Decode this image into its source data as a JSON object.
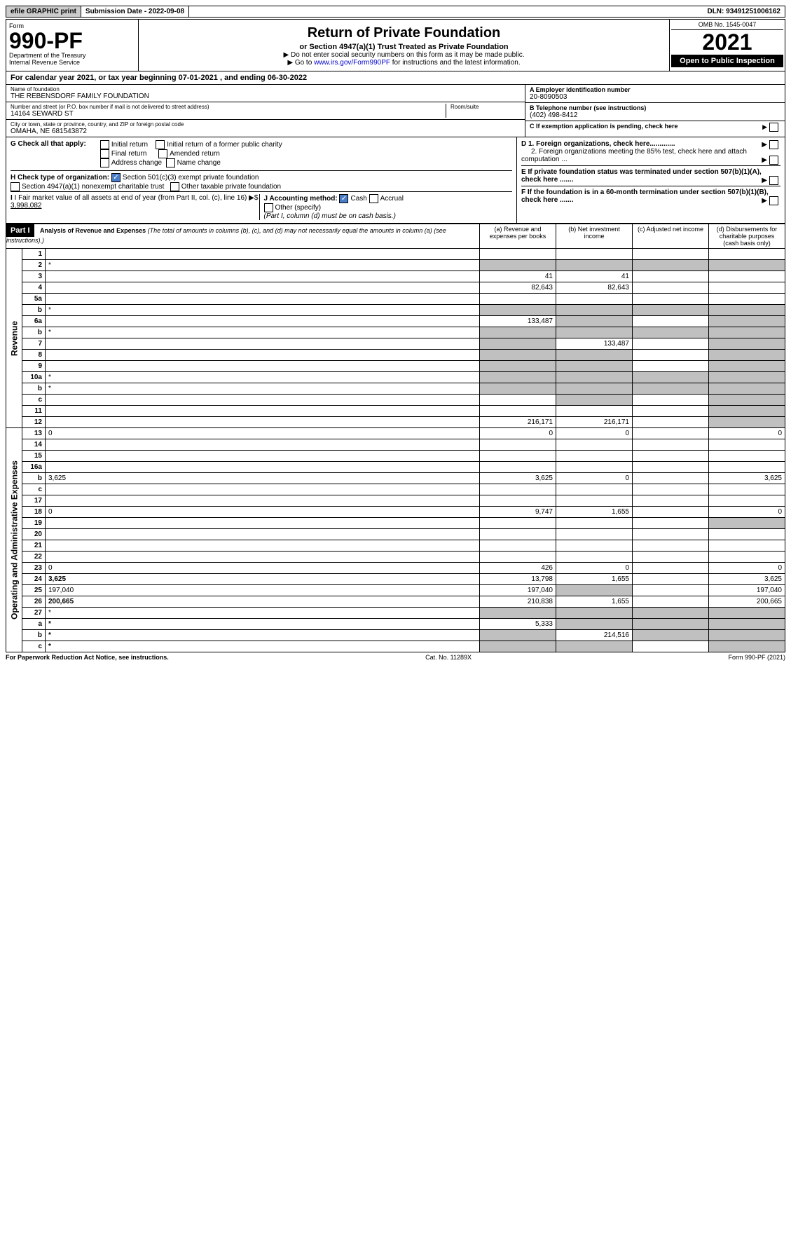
{
  "topbar": {
    "efile": "efile GRAPHIC print",
    "submission_label": "Submission Date - 2022-09-08",
    "dln": "DLN: 93491251006162"
  },
  "header": {
    "form_label": "Form",
    "form_number": "990-PF",
    "dept": "Department of the Treasury",
    "irs": "Internal Revenue Service",
    "title": "Return of Private Foundation",
    "subtitle": "or Section 4947(a)(1) Trust Treated as Private Foundation",
    "note1": "▶ Do not enter social security numbers on this form as it may be made public.",
    "note2_pre": "▶ Go to ",
    "note2_link": "www.irs.gov/Form990PF",
    "note2_post": " for instructions and the latest information.",
    "omb": "OMB No. 1545-0047",
    "year": "2021",
    "open": "Open to Public Inspection"
  },
  "calyear": "For calendar year 2021, or tax year beginning 07-01-2021                      , and ending 06-30-2022",
  "entity": {
    "name_label": "Name of foundation",
    "name": "THE REBENSDORF FAMILY FOUNDATION",
    "addr_label": "Number and street (or P.O. box number if mail is not delivered to street address)",
    "addr": "14164 SEWARD ST",
    "room_label": "Room/suite",
    "room": "",
    "city_label": "City or town, state or province, country, and ZIP or foreign postal code",
    "city": "OMAHA, NE  681543872",
    "ein_label": "A Employer identification number",
    "ein": "20-8090503",
    "tel_label": "B Telephone number (see instructions)",
    "tel": "(402) 498-8412",
    "c_label": "C If exemption application is pending, check here"
  },
  "checks": {
    "g_label": "G Check all that apply:",
    "g_opts": [
      "Initial return",
      "Initial return of a former public charity",
      "Final return",
      "Amended return",
      "Address change",
      "Name change"
    ],
    "h_label": "H Check type of organization:",
    "h_501c3": "Section 501(c)(3) exempt private foundation",
    "h_4947": "Section 4947(a)(1) nonexempt charitable trust",
    "h_other": "Other taxable private foundation",
    "i_label": "I Fair market value of all assets at end of year (from Part II, col. (c), line 16)",
    "i_value": "3,998,082",
    "j_label": "J Accounting method:",
    "j_cash": "Cash",
    "j_accrual": "Accrual",
    "j_other": "Other (specify)",
    "j_note": "(Part I, column (d) must be on cash basis.)",
    "d1": "D 1. Foreign organizations, check here.............",
    "d2": "2. Foreign organizations meeting the 85% test, check here and attach computation ...",
    "e": "E  If private foundation status was terminated under section 507(b)(1)(A), check here .......",
    "f": "F  If the foundation is in a 60-month termination under section 507(b)(1)(B), check here ......."
  },
  "part1": {
    "label": "Part I",
    "title": "Analysis of Revenue and Expenses",
    "title_note": "(The total of amounts in columns (b), (c), and (d) may not necessarily equal the amounts in column (a) (see instructions).)",
    "col_a": "(a) Revenue and expenses per books",
    "col_b": "(b) Net investment income",
    "col_c": "(c) Adjusted net income",
    "col_d": "(d) Disbursements for charitable purposes (cash basis only)"
  },
  "sidelabels": {
    "revenue": "Revenue",
    "expenses": "Operating and Administrative Expenses"
  },
  "rows": [
    {
      "n": "1",
      "d": "",
      "a": "",
      "b": "",
      "c": ""
    },
    {
      "n": "2",
      "d": "*",
      "a": "*",
      "b": "*",
      "c": "*",
      "shadeA": true,
      "shadeB": true,
      "shadeC": true,
      "shadeD": true
    },
    {
      "n": "3",
      "d": "",
      "a": "41",
      "b": "41",
      "c": ""
    },
    {
      "n": "4",
      "d": "",
      "a": "82,643",
      "b": "82,643",
      "c": ""
    },
    {
      "n": "5a",
      "d": "",
      "a": "",
      "b": "",
      "c": ""
    },
    {
      "n": "b",
      "d": "*",
      "a": "*",
      "b": "*",
      "c": "*",
      "shadeA": true,
      "shadeB": true,
      "shadeC": true,
      "shadeD": true
    },
    {
      "n": "6a",
      "d": "",
      "a": "133,487",
      "b": "*",
      "c": "",
      "shadeB": true,
      "shadeD": true
    },
    {
      "n": "b",
      "d": "*",
      "a": "*",
      "b": "*",
      "c": "*",
      "shadeA": true,
      "shadeB": true,
      "shadeC": true,
      "shadeD": true
    },
    {
      "n": "7",
      "d": "",
      "a": "*",
      "b": "133,487",
      "c": "",
      "shadeA": true,
      "shadeD": true
    },
    {
      "n": "8",
      "d": "",
      "a": "*",
      "b": "*",
      "c": "",
      "shadeA": true,
      "shadeB": true,
      "shadeD": true
    },
    {
      "n": "9",
      "d": "",
      "a": "*",
      "b": "*",
      "c": "",
      "shadeA": true,
      "shadeB": true,
      "shadeD": true
    },
    {
      "n": "10a",
      "d": "*",
      "a": "*",
      "b": "*",
      "c": "*",
      "shadeA": true,
      "shadeB": true,
      "shadeC": true,
      "shadeD": true
    },
    {
      "n": "b",
      "d": "*",
      "a": "*",
      "b": "*",
      "c": "*",
      "shadeA": true,
      "shadeB": true,
      "shadeC": true,
      "shadeD": true
    },
    {
      "n": "c",
      "d": "",
      "a": "",
      "b": "*",
      "c": "",
      "shadeB": true,
      "shadeD": true
    },
    {
      "n": "11",
      "d": "",
      "a": "",
      "b": "",
      "c": "",
      "shadeD": true
    },
    {
      "n": "12",
      "d": "",
      "a": "216,171",
      "b": "216,171",
      "c": "",
      "bold": true,
      "shadeD": true
    },
    {
      "n": "13",
      "d": "0",
      "a": "0",
      "b": "0",
      "c": ""
    },
    {
      "n": "14",
      "d": "",
      "a": "",
      "b": "",
      "c": ""
    },
    {
      "n": "15",
      "d": "",
      "a": "",
      "b": "",
      "c": ""
    },
    {
      "n": "16a",
      "d": "",
      "a": "",
      "b": "",
      "c": ""
    },
    {
      "n": "b",
      "d": "3,625",
      "a": "3,625",
      "b": "0",
      "c": ""
    },
    {
      "n": "c",
      "d": "",
      "a": "",
      "b": "",
      "c": ""
    },
    {
      "n": "17",
      "d": "",
      "a": "",
      "b": "",
      "c": ""
    },
    {
      "n": "18",
      "d": "0",
      "a": "9,747",
      "b": "1,655",
      "c": ""
    },
    {
      "n": "19",
      "d": "",
      "a": "",
      "b": "",
      "c": "",
      "shadeD": true
    },
    {
      "n": "20",
      "d": "",
      "a": "",
      "b": "",
      "c": ""
    },
    {
      "n": "21",
      "d": "",
      "a": "",
      "b": "",
      "c": ""
    },
    {
      "n": "22",
      "d": "",
      "a": "",
      "b": "",
      "c": ""
    },
    {
      "n": "23",
      "d": "0",
      "a": "426",
      "b": "0",
      "c": ""
    },
    {
      "n": "24",
      "d": "3,625",
      "a": "13,798",
      "b": "1,655",
      "c": "",
      "bold": true
    },
    {
      "n": "25",
      "d": "197,040",
      "a": "197,040",
      "b": "*",
      "c": "",
      "shadeB": true
    },
    {
      "n": "26",
      "d": "200,665",
      "a": "210,838",
      "b": "1,655",
      "c": "",
      "bold": true
    },
    {
      "n": "27",
      "d": "*",
      "a": "*",
      "b": "*",
      "c": "*",
      "shadeA": true,
      "shadeB": true,
      "shadeC": true,
      "shadeD": true
    },
    {
      "n": "a",
      "d": "*",
      "a": "5,333",
      "b": "*",
      "c": "*",
      "bold": true,
      "shadeB": true,
      "shadeC": true,
      "shadeD": true
    },
    {
      "n": "b",
      "d": "*",
      "a": "*",
      "b": "214,516",
      "c": "*",
      "bold": true,
      "shadeA": true,
      "shadeC": true,
      "shadeD": true
    },
    {
      "n": "c",
      "d": "*",
      "a": "*",
      "b": "*",
      "c": "",
      "bold": true,
      "shadeA": true,
      "shadeB": true,
      "shadeD": true
    }
  ],
  "footer": {
    "pra": "For Paperwork Reduction Act Notice, see instructions.",
    "cat": "Cat. No. 11289X",
    "form": "Form 990-PF (2021)"
  }
}
